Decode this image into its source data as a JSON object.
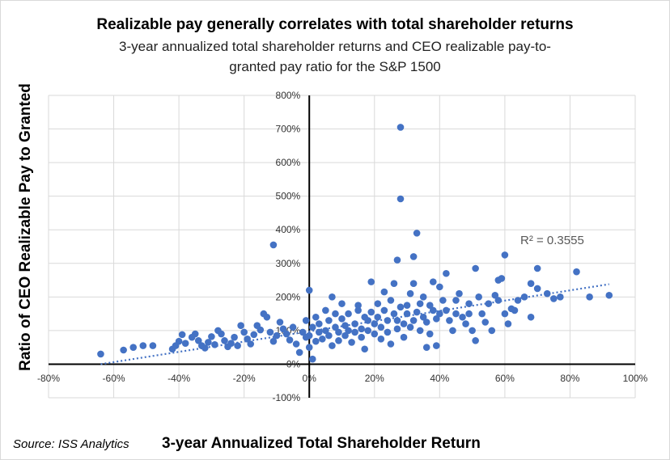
{
  "chart_data": {
    "type": "scatter",
    "title": "Realizable pay generally correlates with total shareholder returns",
    "subtitle_line1": "3-year annualized total shareholder returns and CEO realizable pay-to-",
    "subtitle_line2": "granted pay ratio for the S&P 1500",
    "xlabel": "3-year Annualized Total Shareholder Return",
    "ylabel": "Ratio of CEO Realizable Pay to Granted",
    "source": "Source: ISS Analytics",
    "xlim": [
      -80,
      100
    ],
    "ylim": [
      -100,
      800
    ],
    "x_ticks": [
      -80,
      -60,
      -40,
      -20,
      0,
      20,
      40,
      60,
      80,
      100
    ],
    "x_tick_labels": [
      "-80%",
      "-60%",
      "-40%",
      "-20%",
      "0%",
      "20%",
      "40%",
      "60%",
      "80%",
      "100%"
    ],
    "y_ticks": [
      -100,
      0,
      100,
      200,
      300,
      400,
      500,
      600,
      700,
      800
    ],
    "y_tick_labels": [
      "-100%",
      "0%",
      "100%",
      "200%",
      "300%",
      "400%",
      "500%",
      "600%",
      "700%",
      "800%"
    ],
    "grid": true,
    "marker_color": "#4472C4",
    "trendline": {
      "type": "linear",
      "label": "R² = 0.3555",
      "x": [
        -64,
        92
      ],
      "y": [
        0,
        238
      ]
    },
    "points": [
      [
        -64,
        30
      ],
      [
        -57,
        42
      ],
      [
        -54,
        50
      ],
      [
        -51,
        55
      ],
      [
        -48,
        55
      ],
      [
        -42,
        45
      ],
      [
        -41,
        55
      ],
      [
        -40,
        68
      ],
      [
        -39,
        88
      ],
      [
        -38,
        62
      ],
      [
        -36,
        80
      ],
      [
        -35,
        90
      ],
      [
        -34,
        70
      ],
      [
        -33,
        55
      ],
      [
        -32,
        48
      ],
      [
        -31,
        65
      ],
      [
        -30,
        82
      ],
      [
        -29,
        58
      ],
      [
        -28,
        100
      ],
      [
        -27,
        90
      ],
      [
        -26,
        70
      ],
      [
        -25,
        52
      ],
      [
        -24,
        62
      ],
      [
        -23,
        80
      ],
      [
        -22,
        55
      ],
      [
        -21,
        115
      ],
      [
        -20,
        95
      ],
      [
        -19,
        75
      ],
      [
        -18,
        60
      ],
      [
        -17,
        88
      ],
      [
        -16,
        115
      ],
      [
        -15,
        102
      ],
      [
        -14,
        150
      ],
      [
        -13,
        140
      ],
      [
        -12,
        95
      ],
      [
        -11,
        68
      ],
      [
        -10,
        85
      ],
      [
        -9,
        125
      ],
      [
        -8,
        105
      ],
      [
        -7,
        90
      ],
      [
        -6,
        72
      ],
      [
        -5,
        110
      ],
      [
        -4,
        60
      ],
      [
        -3,
        35
      ],
      [
        -2,
        95
      ],
      [
        -1,
        80
      ],
      [
        -1,
        130
      ],
      [
        -11,
        355
      ],
      [
        0,
        220
      ],
      [
        0,
        85
      ],
      [
        0,
        50
      ],
      [
        1,
        15
      ],
      [
        1,
        110
      ],
      [
        2,
        140
      ],
      [
        2,
        68
      ],
      [
        3,
        95
      ],
      [
        3,
        120
      ],
      [
        4,
        75
      ],
      [
        5,
        160
      ],
      [
        5,
        100
      ],
      [
        6,
        130
      ],
      [
        6,
        85
      ],
      [
        7,
        200
      ],
      [
        7,
        55
      ],
      [
        8,
        110
      ],
      [
        8,
        150
      ],
      [
        9,
        95
      ],
      [
        9,
        70
      ],
      [
        10,
        135
      ],
      [
        10,
        180
      ],
      [
        11,
        115
      ],
      [
        11,
        85
      ],
      [
        12,
        100
      ],
      [
        12,
        150
      ],
      [
        13,
        65
      ],
      [
        14,
        120
      ],
      [
        14,
        95
      ],
      [
        15,
        160
      ],
      [
        15,
        175
      ],
      [
        16,
        105
      ],
      [
        16,
        80
      ],
      [
        17,
        140
      ],
      [
        17,
        45
      ],
      [
        18,
        130
      ],
      [
        18,
        100
      ],
      [
        19,
        155
      ],
      [
        19,
        245
      ],
      [
        20,
        120
      ],
      [
        20,
        90
      ],
      [
        21,
        140
      ],
      [
        21,
        180
      ],
      [
        22,
        110
      ],
      [
        22,
        75
      ],
      [
        23,
        160
      ],
      [
        23,
        215
      ],
      [
        24,
        130
      ],
      [
        24,
        95
      ],
      [
        25,
        190
      ],
      [
        25,
        60
      ],
      [
        26,
        150
      ],
      [
        26,
        240
      ],
      [
        27,
        105
      ],
      [
        27,
        130
      ],
      [
        27,
        310
      ],
      [
        28,
        170
      ],
      [
        28,
        705
      ],
      [
        28,
        492
      ],
      [
        29,
        120
      ],
      [
        29,
        80
      ],
      [
        30,
        150
      ],
      [
        30,
        175
      ],
      [
        31,
        210
      ],
      [
        31,
        110
      ],
      [
        32,
        130
      ],
      [
        32,
        240
      ],
      [
        32,
        320
      ],
      [
        33,
        390
      ],
      [
        33,
        155
      ],
      [
        34,
        100
      ],
      [
        34,
        180
      ],
      [
        35,
        200
      ],
      [
        35,
        140
      ],
      [
        36,
        125
      ],
      [
        36,
        50
      ],
      [
        37,
        175
      ],
      [
        37,
        90
      ],
      [
        38,
        160
      ],
      [
        38,
        245
      ],
      [
        39,
        135
      ],
      [
        39,
        55
      ],
      [
        40,
        150
      ],
      [
        40,
        230
      ],
      [
        41,
        190
      ],
      [
        42,
        160
      ],
      [
        42,
        270
      ],
      [
        43,
        130
      ],
      [
        44,
        100
      ],
      [
        45,
        150
      ],
      [
        45,
        190
      ],
      [
        46,
        210
      ],
      [
        47,
        140
      ],
      [
        48,
        120
      ],
      [
        49,
        180
      ],
      [
        49,
        150
      ],
      [
        50,
        100
      ],
      [
        51,
        285
      ],
      [
        51,
        70
      ],
      [
        52,
        200
      ],
      [
        53,
        150
      ],
      [
        54,
        125
      ],
      [
        55,
        180
      ],
      [
        56,
        100
      ],
      [
        57,
        205
      ],
      [
        58,
        190
      ],
      [
        58,
        250
      ],
      [
        59,
        255
      ],
      [
        60,
        325
      ],
      [
        60,
        150
      ],
      [
        61,
        120
      ],
      [
        62,
        165
      ],
      [
        63,
        160
      ],
      [
        64,
        190
      ],
      [
        66,
        200
      ],
      [
        68,
        240
      ],
      [
        68,
        140
      ],
      [
        70,
        225
      ],
      [
        70,
        285
      ],
      [
        73,
        210
      ],
      [
        75,
        195
      ],
      [
        77,
        200
      ],
      [
        82,
        275
      ],
      [
        86,
        200
      ],
      [
        92,
        205
      ]
    ]
  }
}
